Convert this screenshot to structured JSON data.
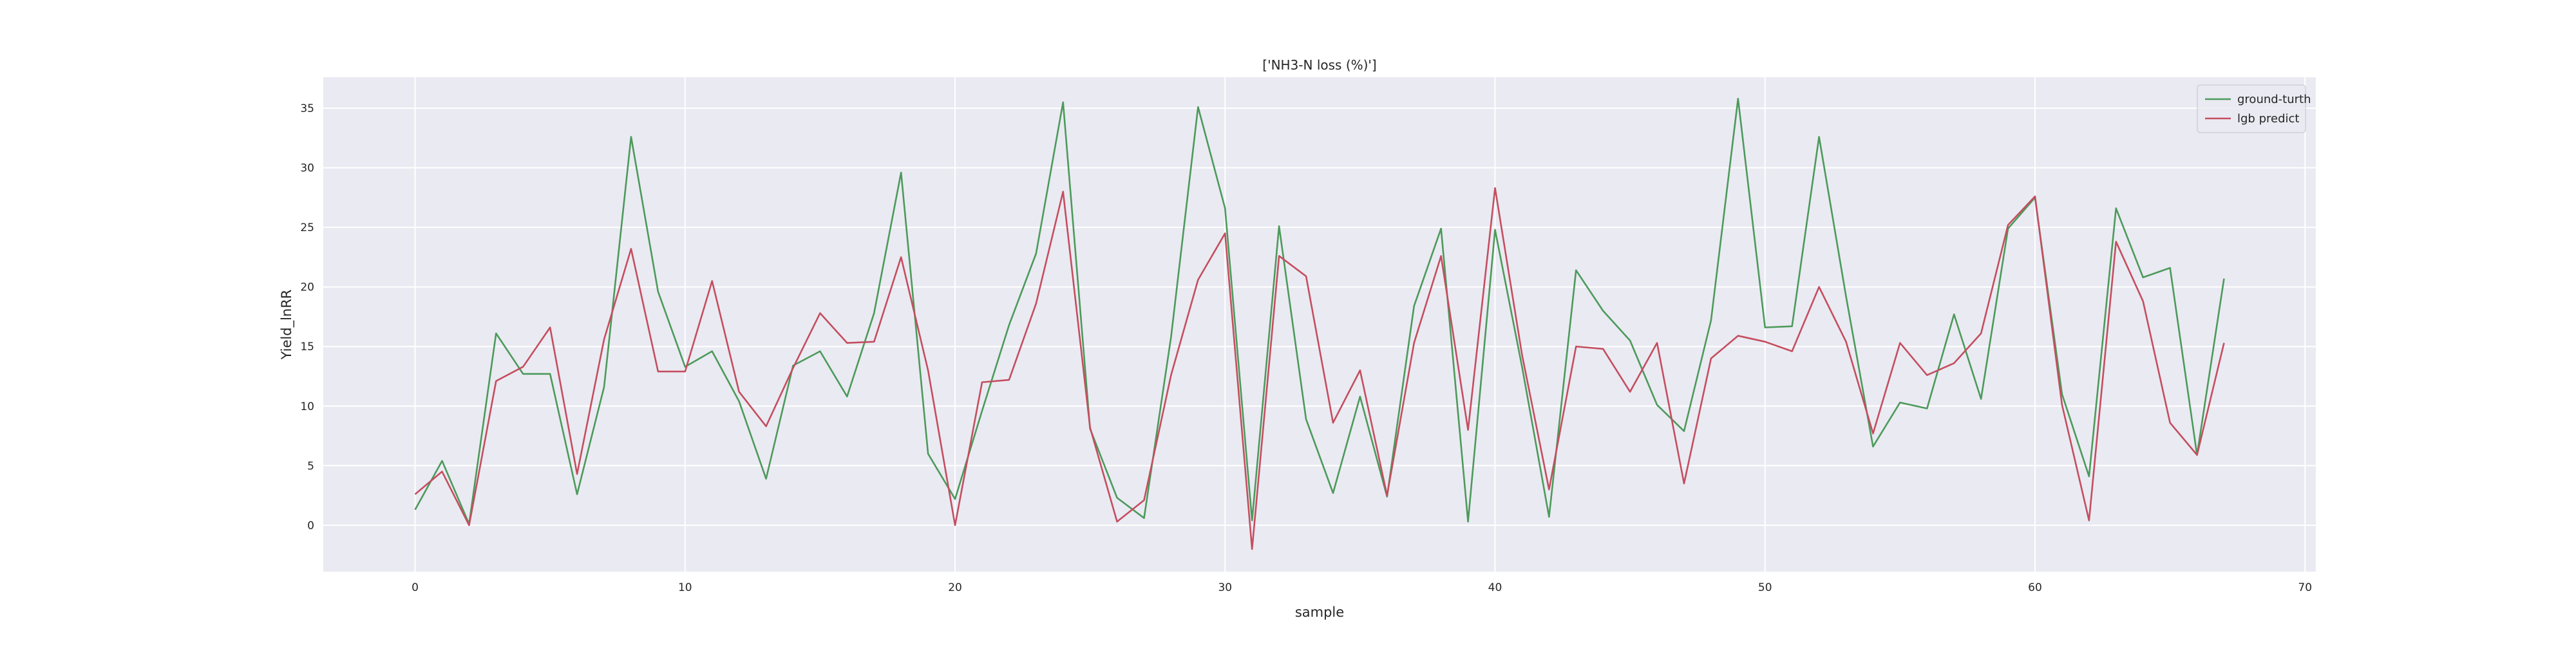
{
  "chart_data": {
    "type": "line",
    "title": "['NH3-N loss (%)']",
    "xlabel": "sample",
    "ylabel": "Yield_lnRR",
    "xlim": [
      -3.4,
      70.4
    ],
    "ylim": [
      -3.9,
      37.6
    ],
    "xticks": [
      0,
      10,
      20,
      30,
      40,
      50,
      60,
      70
    ],
    "yticks": [
      0,
      5,
      10,
      15,
      20,
      25,
      30,
      35
    ],
    "grid": true,
    "legend_position": "upper-right",
    "x": [
      0,
      1,
      2,
      3,
      4,
      5,
      6,
      7,
      8,
      9,
      10,
      11,
      12,
      13,
      14,
      15,
      16,
      17,
      18,
      19,
      20,
      21,
      22,
      23,
      24,
      25,
      26,
      27,
      28,
      29,
      30,
      31,
      32,
      33,
      34,
      35,
      36,
      37,
      38,
      39,
      40,
      41,
      42,
      43,
      44,
      45,
      46,
      47,
      48,
      49,
      50,
      51,
      52,
      53,
      54,
      55,
      56,
      57,
      58,
      59,
      60,
      61,
      62,
      63,
      64,
      65,
      66,
      67
    ],
    "series": [
      {
        "name": "ground-turth",
        "color": "#4c9a5b",
        "values": [
          1.3,
          5.4,
          0.1,
          16.1,
          12.7,
          12.7,
          2.6,
          11.6,
          32.6,
          19.6,
          13.3,
          14.6,
          10.4,
          3.9,
          13.4,
          14.6,
          10.8,
          17.8,
          29.6,
          6.0,
          2.2,
          9.6,
          16.8,
          22.8,
          35.5,
          8.1,
          2.3,
          0.6,
          15.8,
          35.1,
          26.6,
          0.4,
          25.1,
          8.9,
          2.7,
          10.8,
          2.4,
          18.4,
          24.9,
          0.3,
          24.8,
          13.3,
          0.7,
          21.4,
          18.0,
          15.5,
          10.1,
          7.9,
          17.2,
          35.8,
          16.6,
          16.7,
          32.6,
          19.2,
          6.6,
          10.3,
          9.8,
          17.7,
          10.6,
          24.9,
          27.5,
          11.0,
          4.1,
          26.6,
          20.8,
          21.6,
          5.9,
          20.7
        ]
      },
      {
        "name": "lgb predict",
        "color": "#c44e5f",
        "values": [
          2.6,
          4.5,
          0.0,
          12.1,
          13.3,
          16.6,
          4.3,
          15.6,
          23.2,
          12.9,
          12.9,
          20.5,
          11.2,
          8.3,
          13.2,
          17.8,
          15.3,
          15.4,
          22.5,
          13.0,
          0.0,
          12.0,
          12.2,
          18.6,
          28.0,
          8.2,
          0.3,
          2.1,
          12.6,
          20.6,
          24.5,
          -2.0,
          22.6,
          20.9,
          8.6,
          13.0,
          2.5,
          15.3,
          22.6,
          8.0,
          28.3,
          14.3,
          3.0,
          15.0,
          14.8,
          11.2,
          15.3,
          3.5,
          14.0,
          15.9,
          15.4,
          14.6,
          20.0,
          15.4,
          7.7,
          15.3,
          12.6,
          13.6,
          16.1,
          25.2,
          27.6,
          10.1,
          0.4,
          23.8,
          18.8,
          8.6,
          5.9,
          15.3
        ]
      }
    ]
  }
}
